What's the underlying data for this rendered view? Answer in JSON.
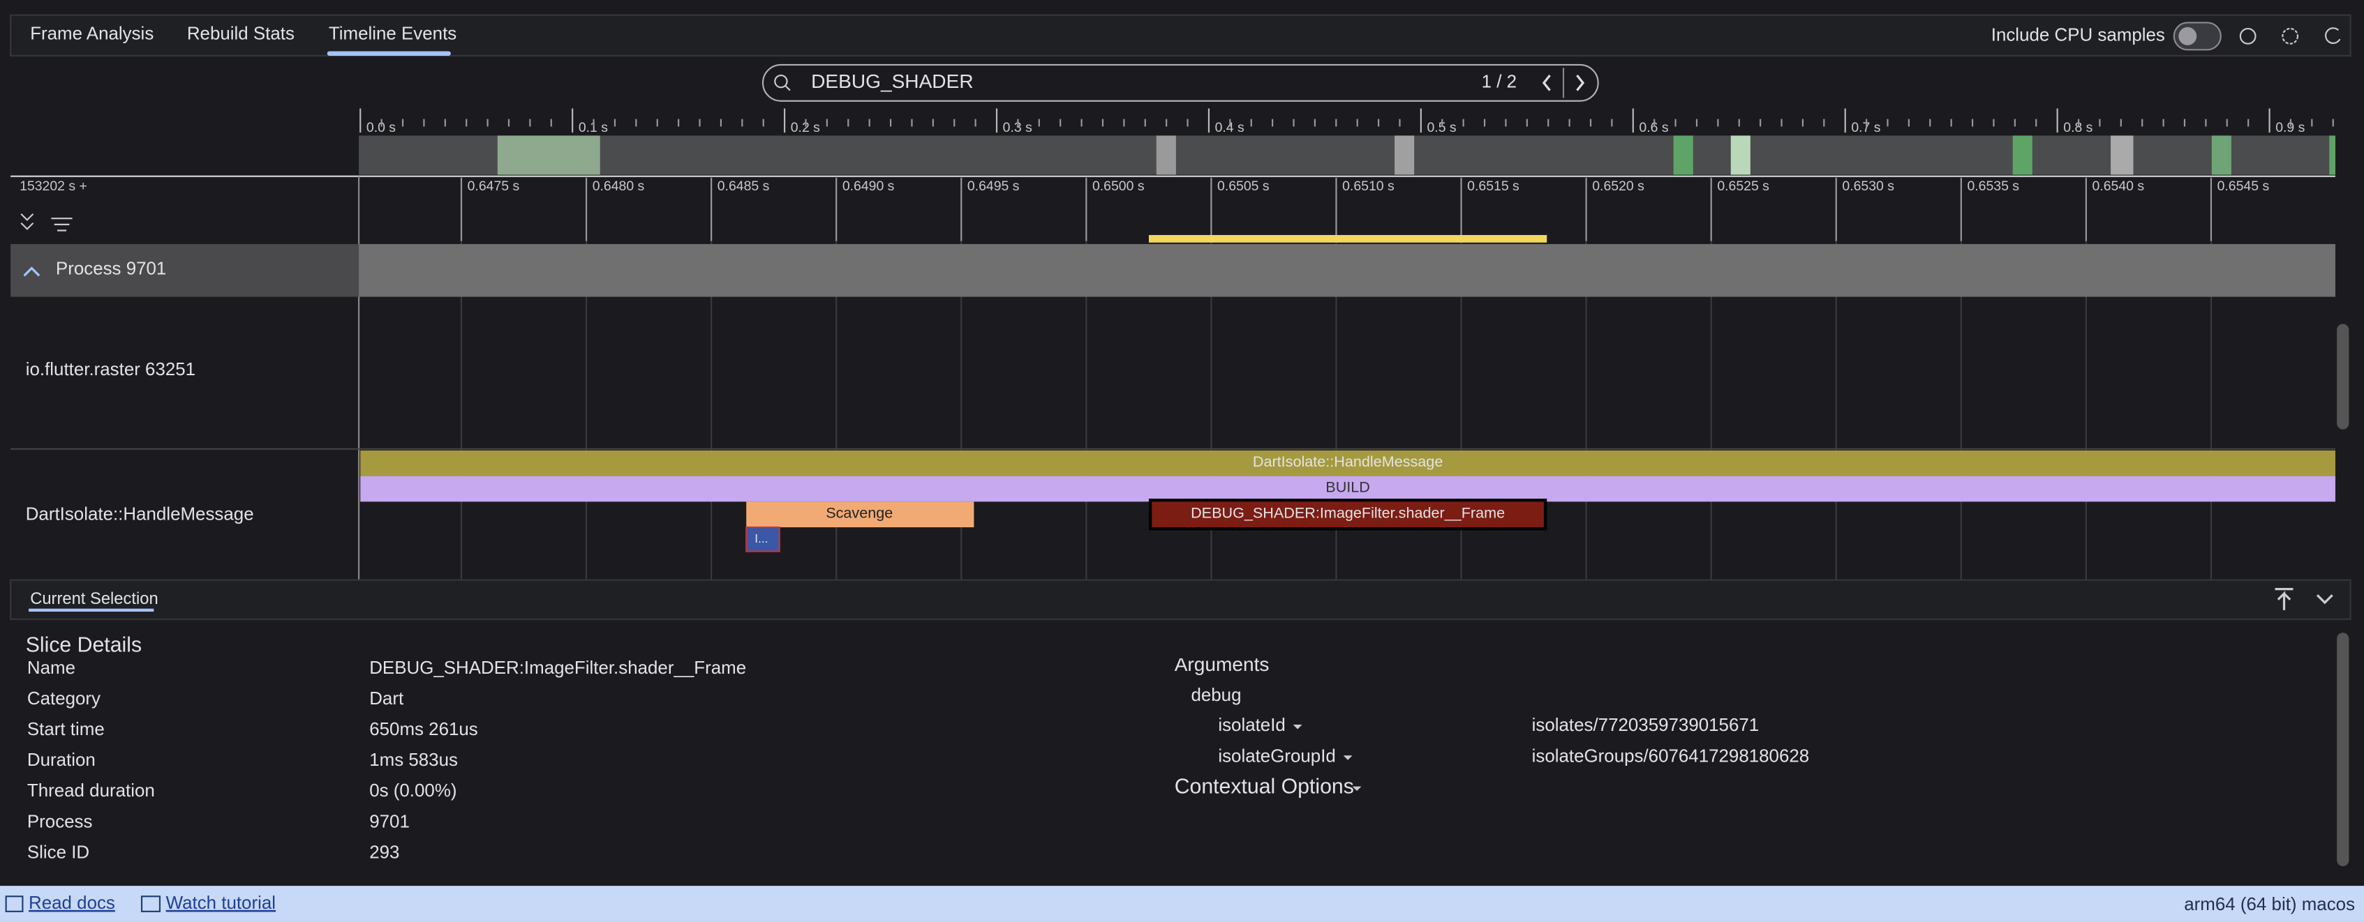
{
  "tabs": [
    "Frame Analysis",
    "Rebuild Stats",
    "Timeline Events"
  ],
  "toolbar": {
    "cpu_samples": "Include CPU samples"
  },
  "search": {
    "query": "DEBUG_SHADER",
    "count": "1 / 2"
  },
  "overview": {
    "ticks": [
      "0.0 s",
      "0.1 s",
      "0.2 s",
      "0.3 s",
      "0.4 s",
      "0.5 s",
      "0.6 s",
      "0.7 s",
      "0.8 s",
      "0.9 s"
    ]
  },
  "timeline": {
    "offset": "153202 s +",
    "ticks": [
      "0.6475 s",
      "0.6480 s",
      "0.6485 s",
      "0.6490 s",
      "0.6495 s",
      "0.6500 s",
      "0.6505 s",
      "0.6510 s",
      "0.6515 s",
      "0.6520 s",
      "0.6525 s",
      "0.6530 s",
      "0.6535 s",
      "0.6540 s",
      "0.6545 s"
    ]
  },
  "process": "Process 9701",
  "threads": [
    "io.flutter.raster 63251",
    "DartIsolate::HandleMessage"
  ],
  "events": {
    "handle_message": "DartIsolate::HandleMessage",
    "build": "BUILD",
    "scavenge": "Scavenge",
    "shader": "DEBUG_SHADER:ImageFilter.shader__Frame",
    "small": "I..."
  },
  "selection": {
    "tab": "Current Selection",
    "title": "Slice Details",
    "rows": [
      [
        "Name",
        "DEBUG_SHADER:ImageFilter.shader__Frame"
      ],
      [
        "Category",
        "Dart"
      ],
      [
        "Start time",
        "650ms 261us"
      ],
      [
        "Duration",
        "1ms 583us"
      ],
      [
        "Thread duration",
        "0s (0.00%)"
      ],
      [
        "Process",
        "9701"
      ],
      [
        "Slice ID",
        "293"
      ]
    ],
    "arguments": "Arguments",
    "debug": "debug",
    "args": [
      [
        "isolateId",
        "isolates/7720359739015671"
      ],
      [
        "isolateGroupId",
        "isolateGroups/6076417298180628"
      ]
    ],
    "contextual": "Contextual Options"
  },
  "footer": {
    "docs": "Read docs",
    "tutorial": "Watch tutorial",
    "platform": "arm64 (64 bit) macos"
  }
}
